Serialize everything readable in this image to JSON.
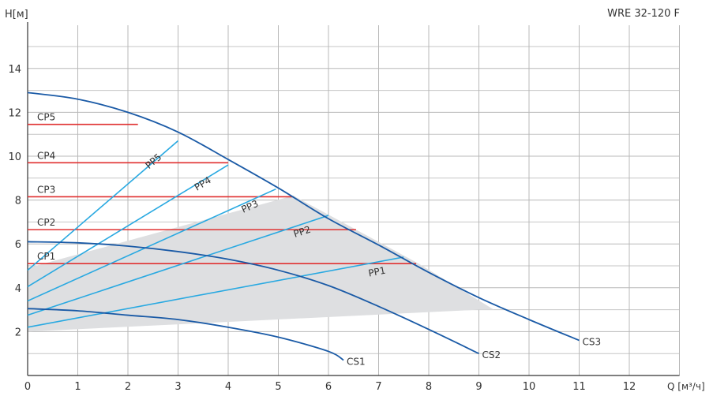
{
  "model": "WRE 32-120 F",
  "chart_data": {
    "type": "line",
    "ylabel": "H[м]",
    "xlabel": "Q [м³/ч]",
    "xlim": [
      0,
      13
    ],
    "ylim": [
      0,
      16
    ],
    "xticks": [
      0,
      1,
      2,
      3,
      4,
      5,
      6,
      7,
      8,
      9,
      10,
      11,
      12
    ],
    "yticks": [
      2,
      4,
      6,
      8,
      10,
      12,
      14
    ],
    "grid": true,
    "colors": {
      "cs": "#1a5aa6",
      "pp": "#29a9e1",
      "cp": "#e03030",
      "region": "#dedfe1",
      "grid": "#b8b8b8"
    },
    "region": {
      "points": [
        [
          0,
          2.0
        ],
        [
          0,
          4.9
        ],
        [
          5.3,
          8.2
        ],
        [
          7.8,
          5.1
        ],
        [
          9.3,
          3.0
        ],
        [
          9.0,
          3.0
        ]
      ]
    },
    "cs_curves": [
      {
        "name": "CS1",
        "points": [
          [
            0,
            3.05
          ],
          [
            1,
            2.95
          ],
          [
            2,
            2.75
          ],
          [
            3,
            2.55
          ],
          [
            4,
            2.2
          ],
          [
            5,
            1.75
          ],
          [
            6,
            1.1
          ],
          [
            6.3,
            0.7
          ]
        ]
      },
      {
        "name": "CS2",
        "points": [
          [
            0,
            6.1
          ],
          [
            1,
            6.05
          ],
          [
            2,
            5.9
          ],
          [
            3,
            5.65
          ],
          [
            4,
            5.3
          ],
          [
            5,
            4.8
          ],
          [
            6,
            4.1
          ],
          [
            7,
            3.15
          ],
          [
            8,
            2.1
          ],
          [
            9,
            1.0
          ]
        ]
      },
      {
        "name": "CS3",
        "points": [
          [
            0,
            12.9
          ],
          [
            1,
            12.6
          ],
          [
            2,
            12.0
          ],
          [
            3,
            11.1
          ],
          [
            4,
            9.85
          ],
          [
            5,
            8.55
          ],
          [
            6,
            7.15
          ],
          [
            7,
            5.95
          ],
          [
            8,
            4.7
          ],
          [
            9,
            3.55
          ],
          [
            10,
            2.55
          ],
          [
            11,
            1.6
          ]
        ]
      }
    ],
    "pp_lines": [
      {
        "name": "PP1",
        "points": [
          [
            0,
            2.2
          ],
          [
            7.5,
            5.4
          ]
        ]
      },
      {
        "name": "PP2",
        "points": [
          [
            0,
            2.75
          ],
          [
            6.0,
            7.3
          ]
        ]
      },
      {
        "name": "PP3",
        "points": [
          [
            0,
            3.4
          ],
          [
            4.95,
            8.5
          ]
        ]
      },
      {
        "name": "PP4",
        "points": [
          [
            0,
            4.05
          ],
          [
            4.0,
            9.6
          ]
        ]
      },
      {
        "name": "PP5",
        "points": [
          [
            0,
            4.8
          ],
          [
            3.0,
            10.7
          ]
        ]
      }
    ],
    "cp_lines": [
      {
        "name": "CP1",
        "y": 5.1,
        "x_end": 7.75
      },
      {
        "name": "CP2",
        "y": 6.65,
        "x_end": 6.55
      },
      {
        "name": "CP3",
        "y": 8.15,
        "x_end": 5.3
      },
      {
        "name": "CP4",
        "y": 9.7,
        "x_end": 4.0
      },
      {
        "name": "CP5",
        "y": 11.45,
        "x_end": 2.2
      }
    ]
  }
}
